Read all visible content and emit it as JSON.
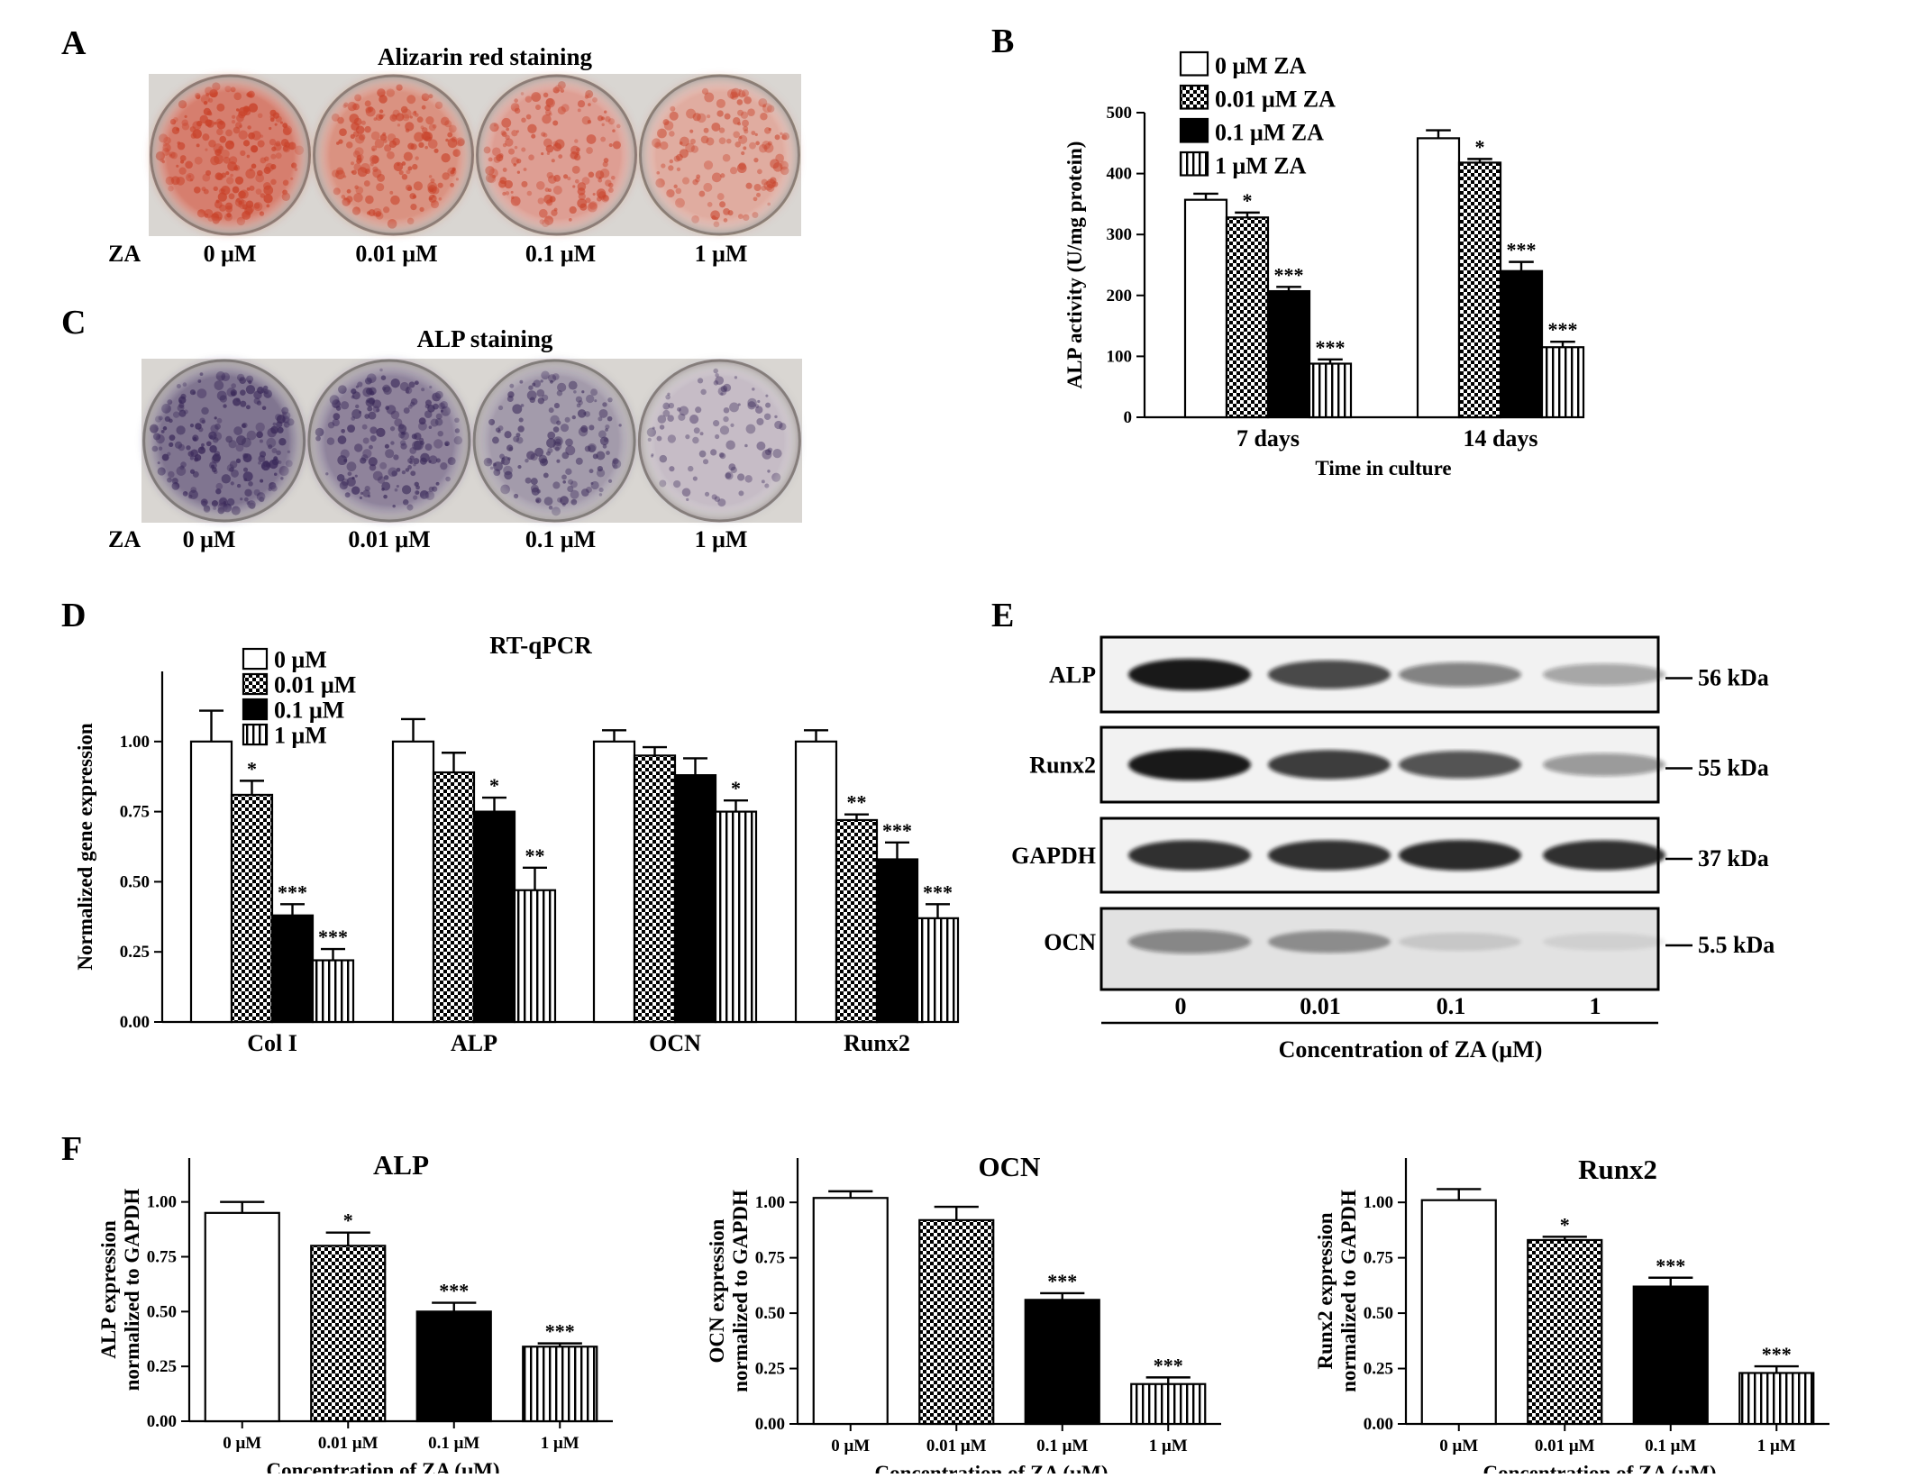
{
  "panel_a": {
    "letter": "A",
    "title": "Alizarin red staining",
    "row_label": "ZA",
    "wells": [
      {
        "label": "0 μM",
        "intensity": 0.95
      },
      {
        "label": "0.01 μM",
        "intensity": 0.75
      },
      {
        "label": "0.1 μM",
        "intensity": 0.6
      },
      {
        "label": "1 μM",
        "intensity": 0.45
      }
    ]
  },
  "panel_c": {
    "letter": "C",
    "title": "ALP staining",
    "row_label": "ZA",
    "wells": [
      {
        "label": "0 μM",
        "intensity": 0.9
      },
      {
        "label": "0.01 μM",
        "intensity": 0.75
      },
      {
        "label": "0.1 μM",
        "intensity": 0.55
      },
      {
        "label": "1 μM",
        "intensity": 0.2
      }
    ]
  },
  "colors": {
    "alizarin": "#c9432b",
    "alp_stain": "#3b2a5a",
    "plate_bg": "#d9d6d2"
  },
  "chart_data": [
    {
      "id": "B",
      "letter": "B",
      "type": "bar",
      "title": "",
      "xlabel": "Time in culture",
      "ylabel": "ALP activity (U/mg protein)",
      "categories": [
        "7 days",
        "14 days"
      ],
      "ylim": [
        0,
        500
      ],
      "yticks": [
        "0",
        "100",
        "200",
        "300",
        "400",
        "500"
      ],
      "legend_position": "top-left",
      "series": [
        {
          "name": "0 μM  ZA",
          "fill": "white",
          "values": [
            357,
            458
          ],
          "errors": [
            10,
            13
          ],
          "sig": [
            "",
            ""
          ]
        },
        {
          "name": "0.01 μM  ZA",
          "fill": "checker",
          "values": [
            328,
            418
          ],
          "errors": [
            8,
            6
          ],
          "sig": [
            "*",
            "*"
          ]
        },
        {
          "name": "0.1 μM  ZA",
          "fill": "black",
          "values": [
            207,
            240
          ],
          "errors": [
            7,
            15
          ],
          "sig": [
            "***",
            "***"
          ]
        },
        {
          "name": "1 μM  ZA",
          "fill": "vstripe",
          "values": [
            88,
            115
          ],
          "errors": [
            7,
            9
          ],
          "sig": [
            "***",
            "***"
          ]
        }
      ]
    },
    {
      "id": "D",
      "letter": "D",
      "type": "bar",
      "title": "RT-qPCR",
      "xlabel": "",
      "ylabel": "Normalized gene expression",
      "categories": [
        "Col I",
        "ALP",
        "OCN",
        "Runx2"
      ],
      "ylim": [
        0,
        1.25
      ],
      "yticks": [
        "0.00",
        "0.25",
        "0.50",
        "0.75",
        "1.00"
      ],
      "legend_position": "top-left",
      "series": [
        {
          "name": "0 μM",
          "fill": "white",
          "values": [
            1.0,
            1.0,
            1.0,
            1.0
          ],
          "errors": [
            0.11,
            0.08,
            0.04,
            0.04
          ],
          "sig": [
            "",
            "",
            "",
            ""
          ]
        },
        {
          "name": "0.01 μM",
          "fill": "checker",
          "values": [
            0.81,
            0.89,
            0.95,
            0.72
          ],
          "errors": [
            0.05,
            0.07,
            0.03,
            0.02
          ],
          "sig": [
            "*",
            "",
            "",
            "**"
          ]
        },
        {
          "name": "0.1 μM",
          "fill": "black",
          "values": [
            0.38,
            0.75,
            0.88,
            0.58
          ],
          "errors": [
            0.04,
            0.05,
            0.06,
            0.06
          ],
          "sig": [
            "***",
            "*",
            "",
            "***"
          ]
        },
        {
          "name": "1 μM",
          "fill": "vstripe",
          "values": [
            0.22,
            0.47,
            0.75,
            0.37
          ],
          "errors": [
            0.04,
            0.08,
            0.04,
            0.05
          ],
          "sig": [
            "***",
            "**",
            "*",
            "***"
          ]
        }
      ]
    },
    {
      "id": "F1",
      "letter": "F",
      "type": "bar",
      "title": "ALP",
      "xlabel": "Concentration of ZA (μM)",
      "ylabel": [
        "ALP expression",
        "normalized to GAPDH"
      ],
      "categories": [
        "0 μM",
        "0.01 μM",
        "0.1 μM",
        "1 μM"
      ],
      "ylim": [
        0,
        1.2
      ],
      "yticks": [
        "0.00",
        "0.25",
        "0.50",
        "0.75",
        "1.00"
      ],
      "fills": [
        "white",
        "checker",
        "black",
        "vstripe"
      ],
      "values": [
        0.95,
        0.8,
        0.5,
        0.34
      ],
      "errors": [
        0.05,
        0.06,
        0.04,
        0.015
      ],
      "sig": [
        "",
        "*",
        "***",
        "***"
      ]
    },
    {
      "id": "F2",
      "type": "bar",
      "title": "OCN",
      "xlabel": "Concentration of ZA (μM)",
      "ylabel": [
        "OCN expression",
        "normalized to GAPDH"
      ],
      "categories": [
        "0 μM",
        "0.01 μM",
        "0.1 μM",
        "1 μM"
      ],
      "ylim": [
        0,
        1.2
      ],
      "yticks": [
        "0.00",
        "0.25",
        "0.50",
        "0.75",
        "1.00"
      ],
      "fills": [
        "white",
        "checker",
        "black",
        "vstripe"
      ],
      "values": [
        1.02,
        0.92,
        0.56,
        0.18
      ],
      "errors": [
        0.03,
        0.06,
        0.03,
        0.03
      ],
      "sig": [
        "",
        "",
        "***",
        "***"
      ]
    },
    {
      "id": "F3",
      "type": "bar",
      "title": "Runx2",
      "xlabel": "Concentration of ZA (μM)",
      "ylabel": [
        "Runx2 expression",
        "normalized to GAPDH"
      ],
      "categories": [
        "0 μM",
        "0.01 μM",
        "0.1 μM",
        "1 μM"
      ],
      "ylim": [
        0,
        1.2
      ],
      "yticks": [
        "0.00",
        "0.25",
        "0.50",
        "0.75",
        "1.00"
      ],
      "fills": [
        "white",
        "checker",
        "black",
        "vstripe"
      ],
      "values": [
        1.01,
        0.83,
        0.62,
        0.23
      ],
      "errors": [
        0.05,
        0.015,
        0.04,
        0.03
      ],
      "sig": [
        "",
        "*",
        "***",
        "***"
      ]
    }
  ],
  "western": {
    "letter": "E",
    "xlabel": "Concentration of ZA (μM)",
    "lanes": [
      "0",
      "0.01",
      "0.1",
      "1"
    ],
    "blots": [
      {
        "protein": "ALP",
        "size": "56 kDa",
        "intensities": [
          0.95,
          0.75,
          0.5,
          0.35
        ]
      },
      {
        "protein": "Runx2",
        "size": "55 kDa",
        "intensities": [
          0.95,
          0.8,
          0.7,
          0.4
        ]
      },
      {
        "protein": "GAPDH",
        "size": "37 kDa",
        "intensities": [
          0.85,
          0.85,
          0.88,
          0.85
        ]
      },
      {
        "protein": "OCN",
        "size": "5.5 kDa",
        "intensities": [
          0.45,
          0.38,
          0.12,
          0.08
        ]
      }
    ]
  }
}
